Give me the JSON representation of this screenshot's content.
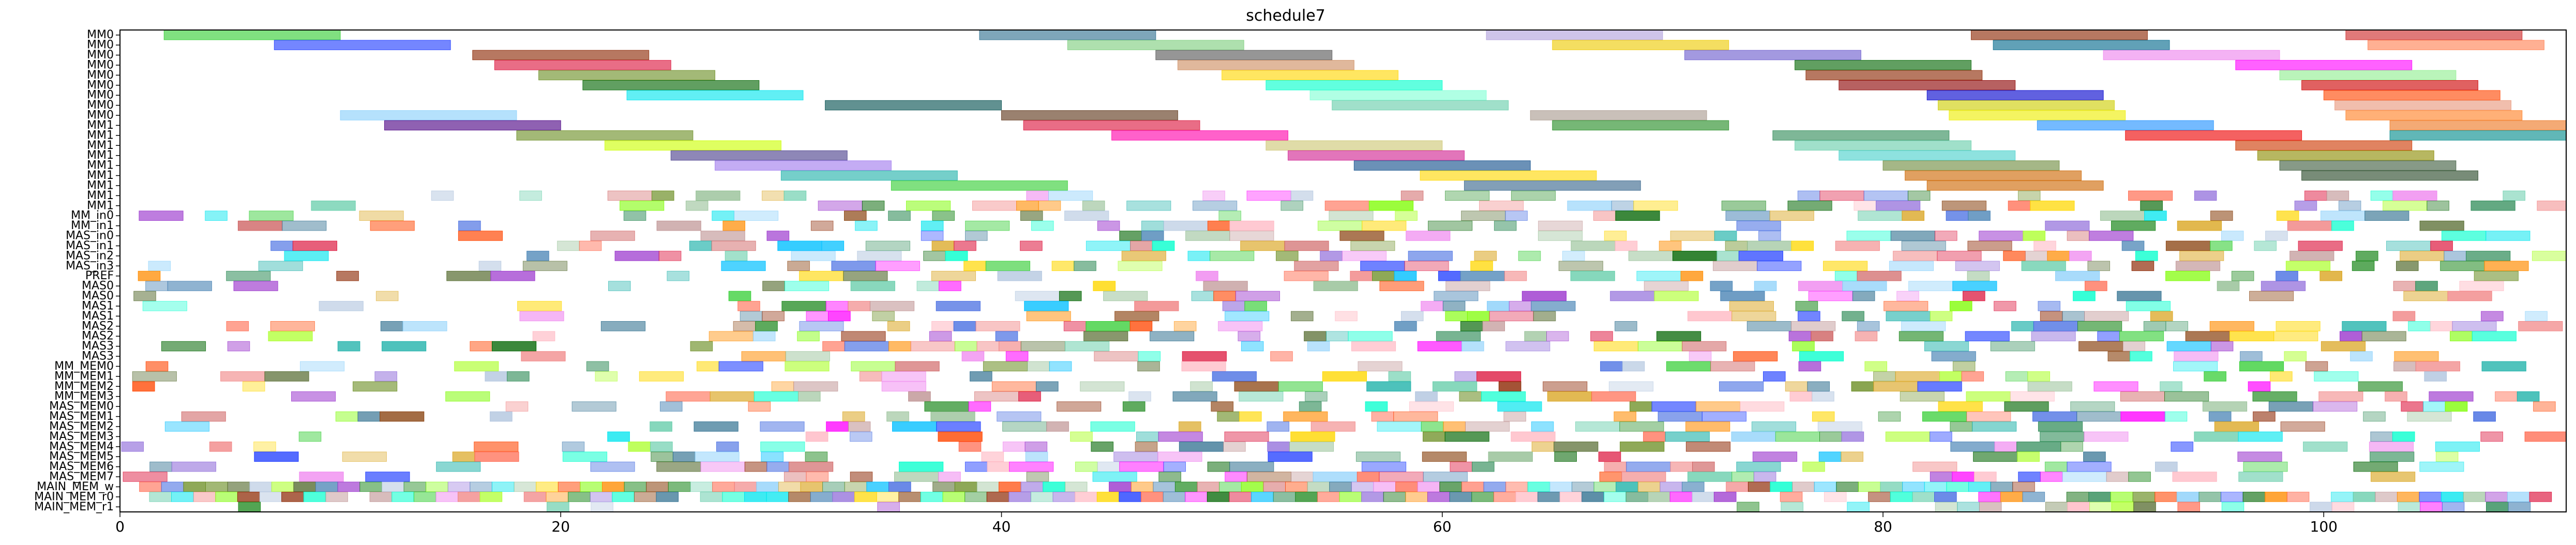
{
  "chart_data": {
    "type": "gantt",
    "title": "schedule7",
    "xlabel": "",
    "ylabel": "",
    "xlim": [
      0,
      111
    ],
    "x_ticks": [
      0,
      20,
      40,
      60,
      80,
      100
    ],
    "y_labels": [
      "MM0",
      "MM0",
      "MM0",
      "MM0",
      "MM0",
      "MM0",
      "MM0",
      "MM0",
      "MM0",
      "MM1",
      "MM1",
      "MM1",
      "MM1",
      "MM1",
      "MM1",
      "MM1",
      "MM1",
      "MM1",
      "MM_in0",
      "MM_in1",
      "MAS_in0",
      "MAS_in1",
      "MAS_in2",
      "MAS_in3",
      "PREF",
      "MAS0",
      "MAS0",
      "MAS1",
      "MAS1",
      "MAS2",
      "MAS2",
      "MAS3",
      "MAS3",
      "MM_MEM0",
      "MM_MEM1",
      "MM_MEM2",
      "MM_MEM3",
      "MAS_MEM0",
      "MAS_MEM1",
      "MAS_MEM2",
      "MAS_MEM3",
      "MAS_MEM4",
      "MAS_MEM5",
      "MAS_MEM6",
      "MAS_MEM7",
      "MAIN_MEM_w",
      "MAIN_MEM_r0",
      "MAIN_MEM_r1"
    ],
    "palette": [
      "#32cd32",
      "#1e3cff",
      "#8b2500",
      "#dc143c",
      "#6b8e23",
      "#006400",
      "#00e5ee",
      "#00ffcc",
      "#2f6f8f",
      "#8fbc8f",
      "#f08080",
      "#4169e1",
      "#ffd700",
      "#ff00ff",
      "#b0c4de",
      "#9370db",
      "#228b22",
      "#20b2aa",
      "#ff6347",
      "#daa520",
      "#00bfff",
      "#bc8f8f",
      "#7cfc00",
      "#ffb6c1",
      "#8b4513",
      "#2e8b57",
      "#9932cc",
      "#ff8c00",
      "#4682b4",
      "#66cdaa",
      "#cd5c5c",
      "#adff2f",
      "#87cefa",
      "#ee82ee",
      "#556b2f",
      "#ff4500"
    ],
    "named_bars": [
      {
        "row": 0,
        "start": 2.0,
        "end": 10.0,
        "color": "#32cd32"
      },
      {
        "row": 0,
        "start": 39.0,
        "end": 47.0,
        "color": "#2f6f8f"
      },
      {
        "row": 0,
        "start": 62.0,
        "end": 70.0,
        "color": "#b0a0dc"
      },
      {
        "row": 0,
        "start": 84.0,
        "end": 92.0,
        "color": "#8b2500"
      },
      {
        "row": 0,
        "start": 101.0,
        "end": 109.0,
        "color": "#cd2626"
      },
      {
        "row": 1,
        "start": 7.0,
        "end": 15.0,
        "color": "#1e3cff"
      },
      {
        "row": 1,
        "start": 43.0,
        "end": 51.0,
        "color": "#7ccd7c"
      },
      {
        "row": 1,
        "start": 65.0,
        "end": 73.0,
        "color": "#eec900"
      },
      {
        "row": 1,
        "start": 85.0,
        "end": 93.0,
        "color": "#00688b"
      },
      {
        "row": 1,
        "start": 102.0,
        "end": 110.0,
        "color": "#ff7f50"
      },
      {
        "row": 2,
        "start": 16.0,
        "end": 24.0,
        "color": "#8b2500"
      },
      {
        "row": 2,
        "start": 47.0,
        "end": 55.0,
        "color": "#555555"
      },
      {
        "row": 2,
        "start": 71.0,
        "end": 79.0,
        "color": "#6a5acd"
      },
      {
        "row": 2,
        "start": 90.0,
        "end": 98.0,
        "color": "#ee82ee"
      },
      {
        "row": 3,
        "start": 17.0,
        "end": 25.0,
        "color": "#dc143c"
      },
      {
        "row": 3,
        "start": 48.0,
        "end": 56.0,
        "color": "#cd8c60"
      },
      {
        "row": 3,
        "start": 76.0,
        "end": 84.0,
        "color": "#006400"
      },
      {
        "row": 3,
        "start": 96.0,
        "end": 104.0,
        "color": "#ff00ff"
      },
      {
        "row": 4,
        "start": 19.0,
        "end": 27.0,
        "color": "#6b8e23"
      },
      {
        "row": 4,
        "start": 50.0,
        "end": 58.0,
        "color": "#ffd700"
      },
      {
        "row": 4,
        "start": 76.5,
        "end": 84.5,
        "color": "#8b2500"
      },
      {
        "row": 4,
        "start": 98.0,
        "end": 106.0,
        "color": "#90ee90"
      },
      {
        "row": 5,
        "start": 21.0,
        "end": 29.0,
        "color": "#006400"
      },
      {
        "row": 5,
        "start": 52.0,
        "end": 60.0,
        "color": "#00ffcc"
      },
      {
        "row": 5,
        "start": 78.0,
        "end": 86.0,
        "color": "#8b0000"
      },
      {
        "row": 5,
        "start": 99.0,
        "end": 107.0,
        "color": "#cd0000"
      },
      {
        "row": 6,
        "start": 23.0,
        "end": 31.0,
        "color": "#00e5ee"
      },
      {
        "row": 6,
        "start": 54.0,
        "end": 62.0,
        "color": "#7fffd4"
      },
      {
        "row": 6,
        "start": 82.0,
        "end": 90.0,
        "color": "#0000cd"
      },
      {
        "row": 6,
        "start": 100.0,
        "end": 108.0,
        "color": "#ff4500"
      },
      {
        "row": 7,
        "start": 32.0,
        "end": 40.0,
        "color": "#004d4d"
      },
      {
        "row": 7,
        "start": 55.0,
        "end": 63.0,
        "color": "#66cdaa"
      },
      {
        "row": 7,
        "start": 82.5,
        "end": 90.5,
        "color": "#cdcd00"
      },
      {
        "row": 7,
        "start": 100.5,
        "end": 108.5,
        "color": "#e9967a"
      },
      {
        "row": 8,
        "start": 10.0,
        "end": 18.0,
        "color": "#87cefa"
      },
      {
        "row": 8,
        "start": 40.0,
        "end": 48.0,
        "color": "#5c3317"
      },
      {
        "row": 8,
        "start": 64.0,
        "end": 72.0,
        "color": "#a89a8e"
      },
      {
        "row": 8,
        "start": 83.0,
        "end": 91.0,
        "color": "#eeee00"
      },
      {
        "row": 8,
        "start": 101.0,
        "end": 109.0,
        "color": "#ff7f24"
      },
      {
        "row": 9,
        "start": 12.0,
        "end": 20.0,
        "color": "#4b0082"
      },
      {
        "row": 9,
        "start": 41.0,
        "end": 49.0,
        "color": "#dc143c"
      },
      {
        "row": 9,
        "start": 65.0,
        "end": 73.0,
        "color": "#228b22"
      },
      {
        "row": 9,
        "start": 87.0,
        "end": 95.0,
        "color": "#1e90ff"
      },
      {
        "row": 9,
        "start": 103.0,
        "end": 111.0,
        "color": "#ee7621"
      },
      {
        "row": 10,
        "start": 18.0,
        "end": 26.0,
        "color": "#6b8e23"
      },
      {
        "row": 10,
        "start": 45.0,
        "end": 53.0,
        "color": "#ff00aa"
      },
      {
        "row": 10,
        "start": 75.0,
        "end": 83.0,
        "color": "#2e8b57"
      },
      {
        "row": 10,
        "start": 91.0,
        "end": 99.0,
        "color": "#ee0000"
      },
      {
        "row": 10,
        "start": 103.0,
        "end": 111.0,
        "color": "#008b8b"
      },
      {
        "row": 11,
        "start": 22.0,
        "end": 30.0,
        "color": "#ccff00"
      },
      {
        "row": 11,
        "start": 52.0,
        "end": 60.0,
        "color": "#cdc673"
      },
      {
        "row": 11,
        "start": 76.0,
        "end": 84.0,
        "color": "#66cdaa"
      },
      {
        "row": 11,
        "start": 96.0,
        "end": 104.0,
        "color": "#cd3700"
      },
      {
        "row": 12,
        "start": 25.0,
        "end": 33.0,
        "color": "#483d8b"
      },
      {
        "row": 12,
        "start": 53.0,
        "end": 61.0,
        "color": "#d02090"
      },
      {
        "row": 12,
        "start": 78.0,
        "end": 86.0,
        "color": "#48d1cc"
      },
      {
        "row": 12,
        "start": 97.0,
        "end": 105.0,
        "color": "#8b8b00"
      },
      {
        "row": 13,
        "start": 27.0,
        "end": 35.0,
        "color": "#9f79ee"
      },
      {
        "row": 13,
        "start": 56.0,
        "end": 64.0,
        "color": "#104e8b"
      },
      {
        "row": 13,
        "start": 80.0,
        "end": 88.0,
        "color": "#6e8b3d"
      },
      {
        "row": 13,
        "start": 98.0,
        "end": 106.0,
        "color": "#3d5c3d"
      },
      {
        "row": 14,
        "start": 30.0,
        "end": 38.0,
        "color": "#20b2aa"
      },
      {
        "row": 14,
        "start": 59.0,
        "end": 67.0,
        "color": "#ffd700"
      },
      {
        "row": 14,
        "start": 81.0,
        "end": 89.0,
        "color": "#cd6600"
      },
      {
        "row": 14,
        "start": 99.0,
        "end": 107.0,
        "color": "#254525"
      },
      {
        "row": 15,
        "start": 35.0,
        "end": 43.0,
        "color": "#32cd32"
      },
      {
        "row": 15,
        "start": 61.0,
        "end": 69.0,
        "color": "#36648b"
      },
      {
        "row": 15,
        "start": 82.0,
        "end": 90.0,
        "color": "#cd6600"
      }
    ],
    "dense_rows": {
      "first_row": 16,
      "last_row": 47,
      "seed": 77,
      "x_start": 0,
      "x_end": 111
    },
    "grid": false
  }
}
